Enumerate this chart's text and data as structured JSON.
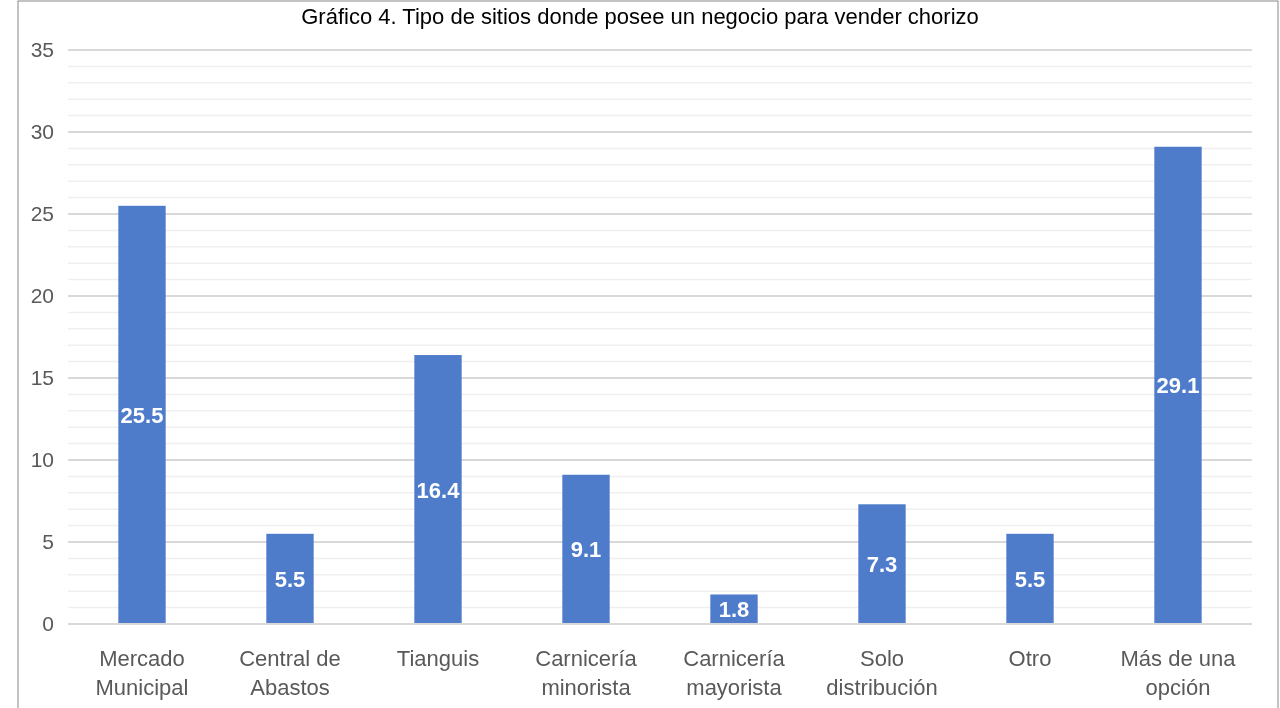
{
  "chart_data": {
    "type": "bar",
    "title": "Gráfico 4. Tipo de sitios donde posee un negocio para vender chorizo",
    "categories": [
      "Mercado\nMunicipal",
      "Central de\nAbastos",
      "Tianguis",
      "Carnicería\nminorista",
      "Carnicería\nmayorista",
      "Solo\ndistribución",
      "Otro",
      "Más de una\nopción"
    ],
    "values": [
      25.5,
      5.5,
      16.4,
      9.1,
      1.8,
      7.3,
      5.5,
      29.1
    ],
    "color": "#4e7ccb",
    "ylim": [
      0,
      35
    ],
    "yticks": [
      0,
      {
        "value": 1,
        "label": null
      },
      {
        "value": 2,
        "label": null
      },
      {
        "value": 3,
        "label": null
      },
      {
        "value": 4,
        "label": null
      },
      5,
      {
        "value": 6,
        "label": null
      },
      {
        "value": 7,
        "label": null
      },
      {
        "value": 8,
        "label": null
      },
      {
        "value": 9,
        "label": null
      },
      10,
      {
        "value": 11,
        "label": null
      },
      {
        "value": 12,
        "label": null
      },
      {
        "value": 13,
        "label": null
      },
      {
        "value": 14,
        "label": null
      },
      15,
      {
        "value": 16,
        "label": null
      },
      {
        "value": 17,
        "label": null
      },
      {
        "value": 18,
        "label": null
      },
      {
        "value": 19,
        "label": null
      },
      20,
      {
        "value": 21,
        "label": null
      },
      {
        "value": 22,
        "label": null
      },
      {
        "value": 23,
        "label": null
      },
      {
        "value": 24,
        "label": null
      },
      25,
      {
        "value": 26,
        "label": null
      },
      {
        "value": 27,
        "label": null
      },
      {
        "value": 28,
        "label": null
      },
      {
        "value": 29,
        "label": null
      },
      30,
      {
        "value": 31,
        "label": null
      },
      {
        "value": 32,
        "label": null
      },
      {
        "value": 33,
        "label": null
      },
      {
        "value": 34,
        "label": null
      },
      35
    ],
    "grid": "y",
    "data_labels": true
  }
}
